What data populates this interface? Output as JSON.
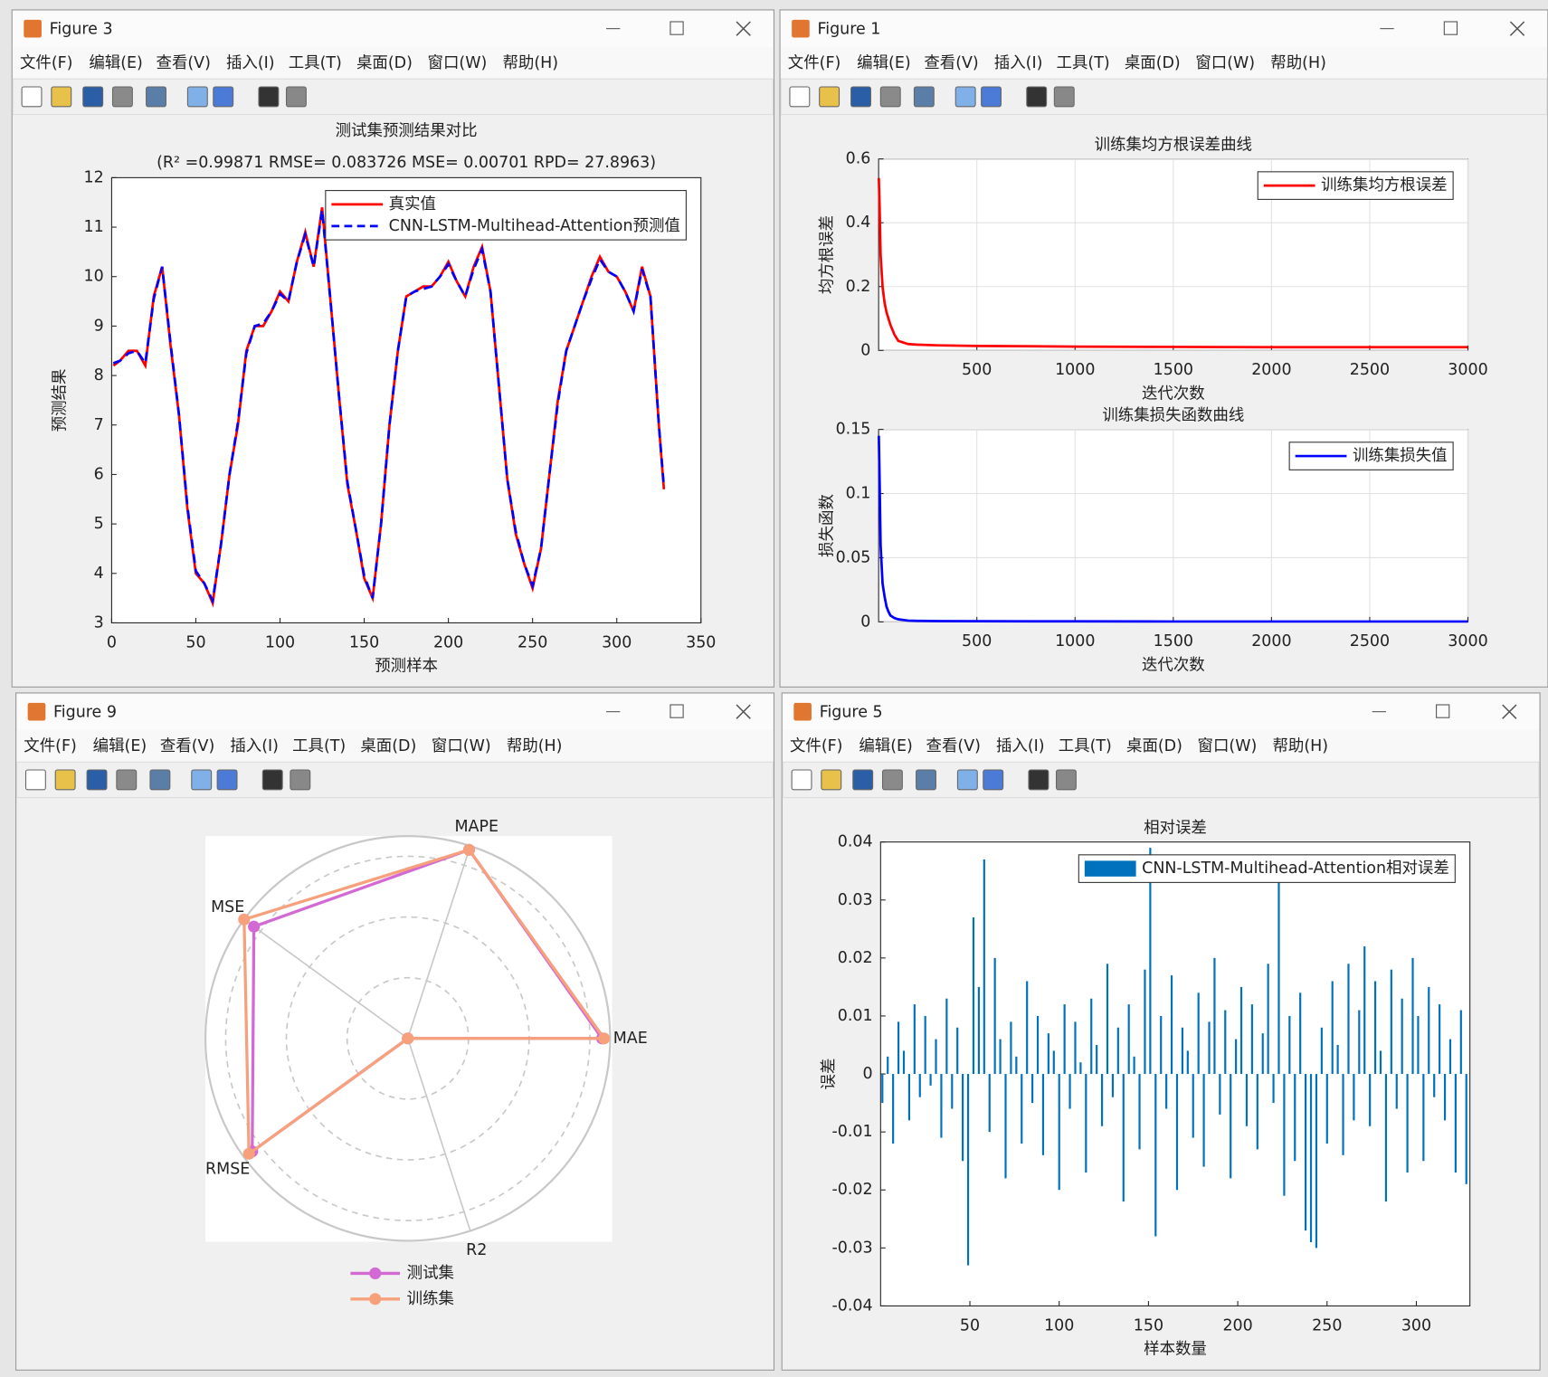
{
  "windows": [
    {
      "title": "Figure 3"
    },
    {
      "title": "Figure 1"
    },
    {
      "title": "Figure 9"
    },
    {
      "title": "Figure 5"
    }
  ],
  "menu": [
    "文件(F)",
    "编辑(E)",
    "查看(V)",
    "插入(I)",
    "工具(T)",
    "桌面(D)",
    "窗口(W)",
    "帮助(H)"
  ],
  "chart_data": [
    {
      "type": "line",
      "title": "测试集预测结果对比",
      "subtitle": "(R² =0.99871 RMSE= 0.083726 MSE= 0.00701 RPD= 27.8963)",
      "xlabel": "预测样本",
      "ylabel": "预测结果",
      "x": [
        1,
        5,
        10,
        15,
        20,
        25,
        30,
        35,
        40,
        45,
        50,
        55,
        60,
        65,
        70,
        75,
        80,
        85,
        90,
        95,
        100,
        105,
        110,
        115,
        120,
        125,
        130,
        135,
        140,
        145,
        150,
        155,
        160,
        165,
        170,
        175,
        180,
        185,
        190,
        195,
        200,
        205,
        210,
        215,
        220,
        225,
        230,
        235,
        240,
        245,
        250,
        255,
        260,
        265,
        270,
        275,
        280,
        285,
        290,
        295,
        300,
        305,
        310,
        315,
        320,
        325,
        328
      ],
      "series": [
        {
          "name": "真实值",
          "color": "#ff0000",
          "linestyle": "-",
          "values": [
            8.2,
            8.3,
            8.5,
            8.5,
            8.2,
            9.6,
            10.2,
            8.6,
            7.2,
            5.3,
            4.0,
            3.8,
            3.4,
            4.6,
            6.0,
            7.0,
            8.5,
            9.0,
            9.0,
            9.3,
            9.7,
            9.5,
            10.3,
            10.9,
            10.2,
            11.4,
            9.5,
            7.6,
            5.8,
            4.9,
            3.9,
            3.5,
            5.0,
            7.0,
            8.5,
            9.6,
            9.7,
            9.8,
            9.8,
            10.0,
            10.3,
            9.9,
            9.6,
            10.2,
            10.6,
            9.7,
            7.8,
            5.9,
            4.8,
            4.2,
            3.7,
            4.5,
            6.0,
            7.5,
            8.5,
            9.0,
            9.5,
            10.0,
            10.4,
            10.1,
            10.0,
            9.7,
            9.3,
            10.2,
            9.6,
            7.0,
            5.7
          ]
        },
        {
          "name": "CNN-LSTM-Multihead-Attention预测值",
          "color": "#0000ff",
          "linestyle": "--",
          "values": [
            8.25,
            8.3,
            8.45,
            8.5,
            8.25,
            9.55,
            10.2,
            8.65,
            7.2,
            5.35,
            4.05,
            3.8,
            3.45,
            4.6,
            6.0,
            7.05,
            8.45,
            9.0,
            9.05,
            9.3,
            9.65,
            9.5,
            10.3,
            10.85,
            10.2,
            11.35,
            9.5,
            7.6,
            5.85,
            4.9,
            3.95,
            3.5,
            5.0,
            7.0,
            8.5,
            9.6,
            9.7,
            9.75,
            9.8,
            10.0,
            10.25,
            9.9,
            9.6,
            10.15,
            10.55,
            9.7,
            7.8,
            5.9,
            4.85,
            4.2,
            3.75,
            4.5,
            6.0,
            7.45,
            8.5,
            9.0,
            9.5,
            9.95,
            10.35,
            10.1,
            10.0,
            9.7,
            9.3,
            10.15,
            9.6,
            7.0,
            5.75
          ]
        }
      ],
      "xlim": [
        0,
        350
      ],
      "xticks": [
        0,
        50,
        100,
        150,
        200,
        250,
        300,
        350
      ],
      "ylim": [
        3,
        12
      ],
      "yticks": [
        3,
        4,
        5,
        6,
        7,
        8,
        9,
        10,
        11,
        12
      ],
      "grid": false,
      "legend": "upper right"
    },
    {
      "type": "line",
      "title": "训练集均方根误差曲线",
      "xlabel": "迭代次数",
      "ylabel": "均方根误差",
      "x": [
        1,
        5,
        10,
        20,
        30,
        40,
        50,
        60,
        80,
        100,
        150,
        200,
        300,
        500,
        1000,
        1500,
        2000,
        2500,
        3000
      ],
      "series": [
        {
          "name": "训练集均方根误差",
          "color": "#ff0000",
          "linestyle": "-",
          "values": [
            0.54,
            0.45,
            0.3,
            0.2,
            0.15,
            0.12,
            0.1,
            0.08,
            0.05,
            0.03,
            0.02,
            0.018,
            0.016,
            0.014,
            0.012,
            0.011,
            0.01,
            0.01,
            0.01
          ]
        }
      ],
      "xlim": [
        0,
        3000
      ],
      "xticks": [
        500,
        1000,
        1500,
        2000,
        2500,
        3000
      ],
      "ylim": [
        0,
        0.6
      ],
      "yticks": [
        0,
        0.2,
        0.4,
        0.6
      ],
      "grid": true,
      "legend": "upper right"
    },
    {
      "type": "line",
      "title": "训练集损失函数曲线",
      "xlabel": "迭代次数",
      "ylabel": "损失函数",
      "x": [
        1,
        5,
        10,
        20,
        30,
        40,
        50,
        60,
        80,
        100,
        150,
        200,
        300,
        500,
        1000,
        1500,
        2000,
        2500,
        3000
      ],
      "series": [
        {
          "name": "训练集损失值",
          "color": "#0000ff",
          "linestyle": "-",
          "values": [
            0.145,
            0.11,
            0.06,
            0.03,
            0.02,
            0.012,
            0.008,
            0.005,
            0.003,
            0.002,
            0.001,
            0.0008,
            0.0006,
            0.0005,
            0.0004,
            0.0003,
            0.0003,
            0.0003,
            0.0003
          ]
        }
      ],
      "xlim": [
        0,
        3000
      ],
      "xticks": [
        500,
        1000,
        1500,
        2000,
        2500,
        3000
      ],
      "ylim": [
        0,
        0.15
      ],
      "yticks": [
        0,
        0.05,
        0.1,
        0.15
      ],
      "grid": true,
      "legend": "upper right"
    },
    {
      "type": "radar",
      "axes": [
        "MAE",
        "MAPE",
        "MSE",
        "RMSE",
        "R2"
      ],
      "rlim": [
        0,
        1
      ],
      "series": [
        {
          "name": "测试集",
          "color": "#d36ad3",
          "values": [
            0.96,
            0.98,
            0.94,
            0.95,
            0
          ]
        },
        {
          "name": "训练集",
          "color": "#f6a07c",
          "values": [
            0.97,
            0.98,
            1.0,
            0.97,
            0
          ]
        }
      ],
      "legend": "bottom"
    },
    {
      "type": "bar",
      "title": "相对误差",
      "xlabel": "样本数量",
      "ylabel": "误差",
      "x": [
        1,
        4,
        7,
        10,
        13,
        16,
        19,
        22,
        25,
        28,
        31,
        34,
        37,
        40,
        43,
        46,
        49,
        52,
        55,
        58,
        61,
        64,
        67,
        70,
        73,
        76,
        79,
        82,
        85,
        88,
        91,
        94,
        97,
        100,
        103,
        106,
        109,
        112,
        115,
        118,
        121,
        124,
        127,
        130,
        133,
        136,
        139,
        142,
        145,
        148,
        151,
        154,
        157,
        160,
        163,
        166,
        169,
        172,
        175,
        178,
        181,
        184,
        187,
        190,
        193,
        196,
        199,
        202,
        205,
        208,
        211,
        214,
        217,
        220,
        223,
        226,
        229,
        232,
        235,
        238,
        241,
        244,
        247,
        250,
        253,
        256,
        259,
        262,
        265,
        268,
        271,
        274,
        277,
        280,
        283,
        286,
        289,
        292,
        295,
        298,
        301,
        304,
        307,
        310,
        313,
        316,
        319,
        322,
        325,
        328
      ],
      "series": [
        {
          "name": "CNN-LSTM-Multihead-Attention相对误差",
          "color": "#0072bd",
          "values": [
            -0.005,
            0.003,
            -0.012,
            0.009,
            0.004,
            -0.008,
            0.012,
            -0.004,
            0.01,
            -0.002,
            0.006,
            -0.011,
            0.013,
            -0.006,
            0.008,
            -0.015,
            -0.033,
            0.027,
            0.015,
            0.037,
            -0.01,
            0.02,
            0.006,
            -0.018,
            0.009,
            0.003,
            -0.012,
            0.016,
            -0.005,
            0.01,
            -0.014,
            0.007,
            0.004,
            -0.02,
            0.012,
            -0.006,
            0.009,
            0.002,
            -0.017,
            0.013,
            0.005,
            -0.009,
            0.019,
            -0.004,
            0.008,
            -0.022,
            0.012,
            0.003,
            -0.013,
            0.018,
            0.039,
            -0.028,
            0.01,
            -0.006,
            0.017,
            -0.02,
            0.008,
            0.004,
            -0.011,
            0.014,
            -0.016,
            0.009,
            0.02,
            -0.007,
            0.011,
            -0.018,
            0.006,
            0.015,
            -0.009,
            0.012,
            -0.013,
            0.007,
            0.019,
            -0.005,
            0.033,
            -0.021,
            0.01,
            -0.015,
            0.014,
            -0.027,
            -0.029,
            -0.03,
            0.008,
            -0.012,
            0.016,
            0.005,
            -0.014,
            0.019,
            -0.008,
            0.011,
            0.022,
            -0.009,
            0.016,
            0.004,
            -0.022,
            0.018,
            -0.006,
            0.013,
            -0.017,
            0.02,
            0.01,
            -0.015,
            0.015,
            -0.004,
            0.012,
            -0.008,
            0.006,
            -0.017,
            0.011,
            -0.019
          ]
        }
      ],
      "xlim": [
        0,
        330
      ],
      "xticks": [
        50,
        100,
        150,
        200,
        250,
        300
      ],
      "ylim": [
        -0.04,
        0.04
      ],
      "yticks": [
        -0.04,
        -0.03,
        -0.02,
        -0.01,
        0,
        0.01,
        0.02,
        0.03,
        0.04
      ],
      "grid": false,
      "legend": "upper right"
    }
  ]
}
